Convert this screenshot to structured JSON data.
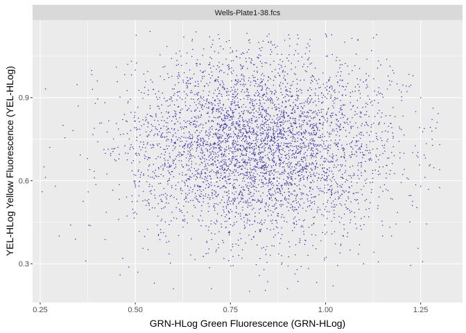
{
  "chart_data": {
    "type": "scatter",
    "facet_label": "Wells-Plate1-38.fcs",
    "xlabel": "GRN-HLog Green Fluorescence (GRN-HLog)",
    "ylabel": "YEL-HLog Yellow Fluorescence (YEL-HLog)",
    "xlim": [
      0.23,
      1.36
    ],
    "ylim": [
      0.16,
      1.18
    ],
    "x_ticks": [
      0.25,
      0.5,
      0.75,
      1.0,
      1.25
    ],
    "x_tick_labels": [
      "0.25",
      "0.50",
      "0.75",
      "1.00",
      "1.25"
    ],
    "y_ticks": [
      0.3,
      0.6,
      0.9
    ],
    "y_tick_labels": [
      "0.3",
      "0.6",
      "0.9"
    ],
    "grid": true,
    "legend": "none",
    "point_color": "#3b2fa8",
    "panel_background": "#ebebeb",
    "strip_background": "#d9d9d9",
    "grid_color": "#ffffff",
    "point_cloud": {
      "n_points": 4500,
      "x_mean": 0.82,
      "x_sd": 0.17,
      "y_mean": 0.72,
      "y_sd": 0.17,
      "x_range": [
        0.255,
        1.3
      ],
      "y_range": [
        0.2,
        1.14
      ]
    },
    "series": [
      {
        "points": [
          [
            0.255,
            0.56
          ],
          [
            0.26,
            0.65
          ],
          [
            0.275,
            0.72
          ],
          [
            0.29,
            0.58
          ],
          [
            0.3,
            0.4
          ],
          [
            0.31,
            0.8
          ],
          [
            0.33,
            0.44
          ],
          [
            0.35,
            0.87
          ],
          [
            0.37,
            0.31
          ],
          [
            0.4,
            0.96
          ],
          [
            0.45,
            1.01
          ],
          [
            0.46,
            0.26
          ],
          [
            0.5,
            1.0
          ],
          [
            0.55,
            0.23
          ],
          [
            0.6,
            0.21
          ],
          [
            0.62,
            1.05
          ],
          [
            0.7,
            0.21
          ],
          [
            0.75,
            1.08
          ],
          [
            0.8,
            0.2
          ],
          [
            0.83,
            1.07
          ],
          [
            0.9,
            0.21
          ],
          [
            0.95,
            1.08
          ],
          [
            1.0,
            1.13
          ],
          [
            1.02,
            0.22
          ],
          [
            1.05,
            1.1
          ],
          [
            1.1,
            0.3
          ],
          [
            1.15,
            0.4
          ],
          [
            1.2,
            0.89
          ],
          [
            1.22,
            0.94
          ],
          [
            1.25,
            0.58
          ],
          [
            1.25,
            0.9
          ],
          [
            1.28,
            0.75
          ],
          [
            1.29,
            0.79
          ],
          [
            1.3,
            0.64
          ],
          [
            1.3,
            0.73
          ]
        ]
      }
    ]
  }
}
